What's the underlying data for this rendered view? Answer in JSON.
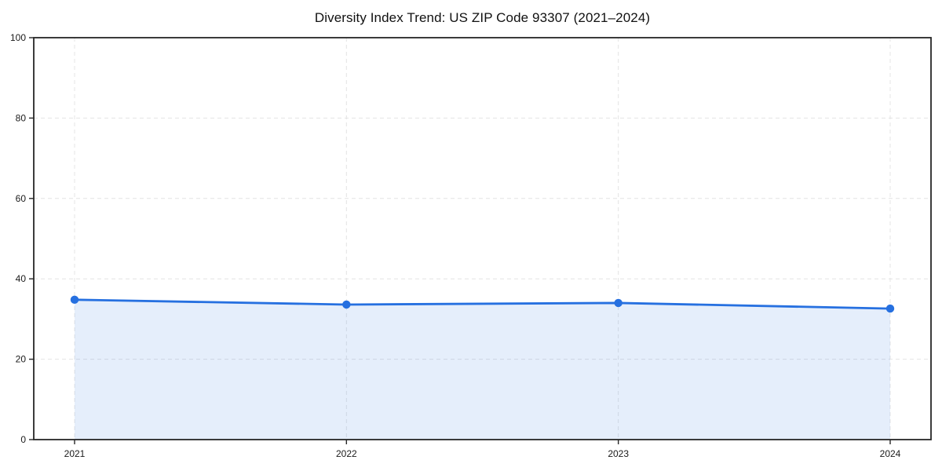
{
  "chart_data": {
    "type": "area",
    "title": "Diversity Index Trend: US ZIP Code 93307 (2021–2024)",
    "x": [
      2021,
      2022,
      2023,
      2024
    ],
    "xtick_labels": [
      "2021",
      "2022",
      "2023",
      "2024"
    ],
    "values": [
      34.8,
      33.6,
      34.0,
      32.6
    ],
    "series_name": "Diversity Index",
    "xlabel": "",
    "ylabel": "",
    "ylim": [
      0,
      100
    ],
    "yticks": [
      0,
      20,
      40,
      60,
      80,
      100
    ],
    "ytick_labels": [
      "0",
      "20",
      "40",
      "60",
      "80",
      "100"
    ],
    "grid": true,
    "grid_style": "dashed",
    "legend_position": "none",
    "line_color": "#2670e0",
    "marker_color": "#2670e0",
    "fill_color": "#2670e0",
    "fill_opacity": 0.12,
    "grid_color": "#e4e4e4",
    "axis_color": "#262626",
    "background_color": "#ffffff",
    "marker": "circle"
  }
}
